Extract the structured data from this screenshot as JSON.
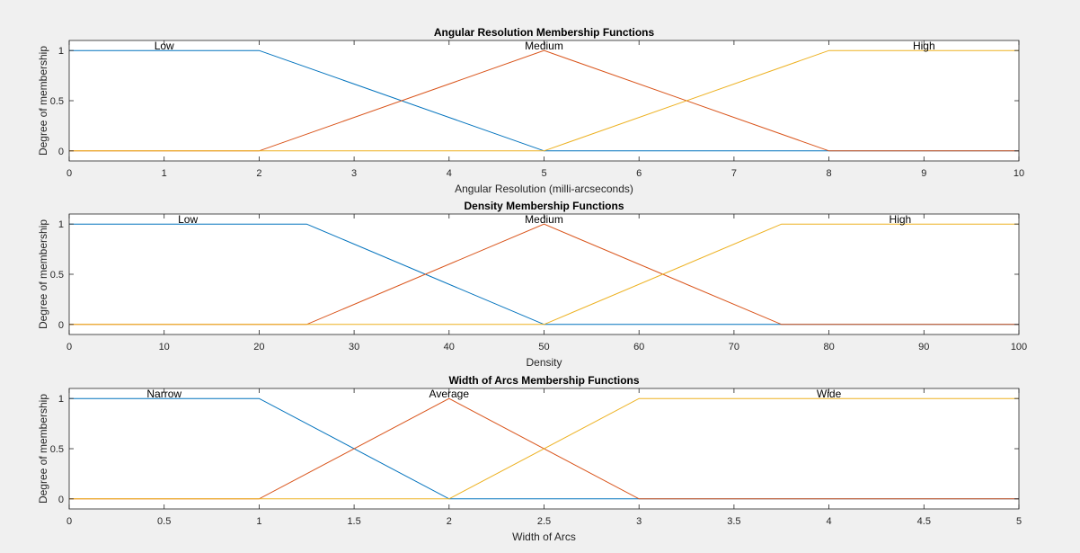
{
  "colors": {
    "figure_background": "#f0f0f0",
    "axes_background": "#ffffff",
    "axes_color": "#262626",
    "series": [
      "#0072bd",
      "#d95319",
      "#edb120"
    ]
  },
  "chart_data": [
    {
      "type": "line",
      "title": "Angular Resolution Membership Functions",
      "xlabel": "Angular Resolution (milli-arcseconds)",
      "ylabel": "Degree of membership",
      "xlim": [
        0,
        10
      ],
      "ylim": [
        -0.1,
        1.1
      ],
      "xticks": [
        0,
        1,
        2,
        3,
        4,
        5,
        6,
        7,
        8,
        9,
        10
      ],
      "xtick_labels": [
        "0",
        "1",
        "2",
        "3",
        "4",
        "5",
        "6",
        "7",
        "8",
        "9",
        "10"
      ],
      "yticks": [
        0,
        0.5,
        1
      ],
      "ytick_labels": [
        "0",
        "0.5",
        "1"
      ],
      "grid": false,
      "series": [
        {
          "name": "Low",
          "x": [
            0,
            2,
            5,
            10
          ],
          "y": [
            1,
            1,
            0,
            0
          ],
          "label_x": 1
        },
        {
          "name": "Medium",
          "x": [
            0,
            2,
            5,
            8,
            10
          ],
          "y": [
            0,
            0,
            1,
            0,
            0
          ],
          "label_x": 5
        },
        {
          "name": "High",
          "x": [
            0,
            5,
            8,
            10
          ],
          "y": [
            0,
            0,
            1,
            1
          ],
          "label_x": 9
        }
      ]
    },
    {
      "type": "line",
      "title": "Density Membership Functions",
      "xlabel": "Density",
      "ylabel": "Degree of membership",
      "xlim": [
        0,
        100
      ],
      "ylim": [
        -0.1,
        1.1
      ],
      "xticks": [
        0,
        10,
        20,
        30,
        40,
        50,
        60,
        70,
        80,
        90,
        100
      ],
      "xtick_labels": [
        "0",
        "10",
        "20",
        "30",
        "40",
        "50",
        "60",
        "70",
        "80",
        "90",
        "100"
      ],
      "yticks": [
        0,
        0.5,
        1
      ],
      "ytick_labels": [
        "0",
        "0.5",
        "1"
      ],
      "grid": false,
      "series": [
        {
          "name": "Low",
          "x": [
            0,
            25,
            50,
            100
          ],
          "y": [
            1,
            1,
            0,
            0
          ],
          "label_x": 12.5
        },
        {
          "name": "Medium",
          "x": [
            0,
            25,
            50,
            75,
            100
          ],
          "y": [
            0,
            0,
            1,
            0,
            0
          ],
          "label_x": 50
        },
        {
          "name": "High",
          "x": [
            0,
            50,
            75,
            100
          ],
          "y": [
            0,
            0,
            1,
            1
          ],
          "label_x": 87.5
        }
      ]
    },
    {
      "type": "line",
      "title": "Width of Arcs Membership Functions",
      "xlabel": "Width of Arcs",
      "ylabel": "Degree of membership",
      "xlim": [
        0,
        5
      ],
      "ylim": [
        -0.1,
        1.1
      ],
      "xticks": [
        0,
        0.5,
        1,
        1.5,
        2,
        2.5,
        3,
        3.5,
        4,
        4.5,
        5
      ],
      "xtick_labels": [
        "0",
        "0.5",
        "1",
        "1.5",
        "2",
        "2.5",
        "3",
        "3.5",
        "4",
        "4.5",
        "5"
      ],
      "yticks": [
        0,
        0.5,
        1
      ],
      "ytick_labels": [
        "0",
        "0.5",
        "1"
      ],
      "grid": false,
      "series": [
        {
          "name": "Narrow",
          "x": [
            0,
            1,
            2,
            5
          ],
          "y": [
            1,
            1,
            0,
            0
          ],
          "label_x": 0.5
        },
        {
          "name": "Average",
          "x": [
            0,
            1,
            2,
            3,
            5
          ],
          "y": [
            0,
            0,
            1,
            0,
            0
          ],
          "label_x": 2
        },
        {
          "name": "Wide",
          "x": [
            0,
            2,
            3,
            5
          ],
          "y": [
            0,
            0,
            1,
            1
          ],
          "label_x": 4
        }
      ]
    }
  ]
}
